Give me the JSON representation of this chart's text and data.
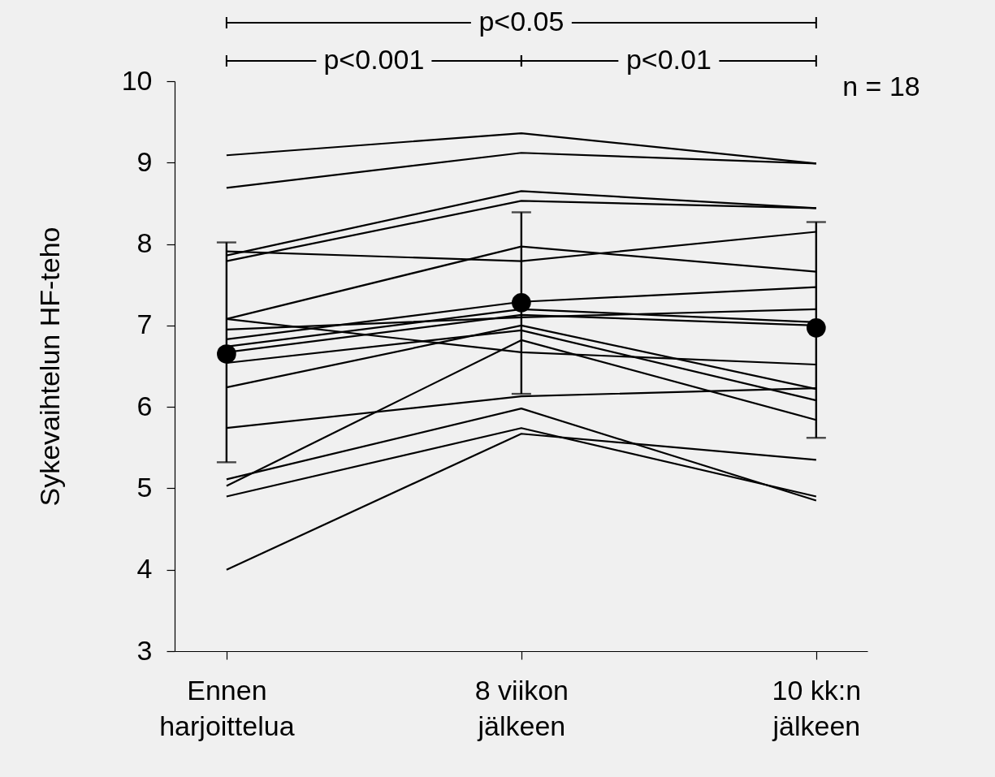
{
  "chart_data": {
    "type": "line",
    "ylabel": "Sykevaihtelun HF-teho",
    "categories": [
      "Ennen\nharjoittelua",
      "8 viikon\njälkeen",
      "10 kk:n\njälkeen"
    ],
    "ylim": [
      3,
      10
    ],
    "yticks": [
      3,
      4,
      5,
      6,
      7,
      8,
      9,
      10
    ],
    "grid": false,
    "line_style": "solid",
    "annotations": [
      "p<0.05",
      "p<0.001",
      "p<0.01",
      "n = 18"
    ],
    "series": [
      {
        "type": "scatter",
        "marker": "circle",
        "color": "#000000",
        "values": [
          6.65,
          7.28,
          6.97
        ],
        "errors": [
          [
            5.32,
            8.02
          ],
          [
            6.16,
            8.39
          ],
          [
            5.62,
            8.27
          ]
        ]
      },
      {
        "color": "#000000",
        "values": [
          9.09,
          9.36,
          8.99
        ]
      },
      {
        "color": "#000000",
        "values": [
          8.69,
          9.12,
          8.99
        ]
      },
      {
        "color": "#000000",
        "values": [
          7.86,
          8.65,
          8.44
        ]
      },
      {
        "color": "#000000",
        "values": [
          7.79,
          8.53,
          8.44
        ]
      },
      {
        "color": "#000000",
        "values": [
          7.91,
          7.79,
          8.15
        ]
      },
      {
        "color": "#000000",
        "values": [
          7.08,
          7.97,
          7.66
        ]
      },
      {
        "color": "#000000",
        "values": [
          7.08,
          6.67,
          6.52
        ]
      },
      {
        "color": "#000000",
        "values": [
          6.95,
          7.1,
          7.2
        ]
      },
      {
        "color": "#000000",
        "values": [
          6.83,
          7.29,
          7.47
        ]
      },
      {
        "color": "#000000",
        "values": [
          6.74,
          7.2,
          7.04
        ]
      },
      {
        "color": "#000000",
        "values": [
          6.67,
          7.13,
          7.0
        ]
      },
      {
        "color": "#000000",
        "values": [
          6.54,
          6.94,
          6.08
        ]
      },
      {
        "color": "#000000",
        "values": [
          6.24,
          7.0,
          6.22
        ]
      },
      {
        "color": "#000000",
        "values": [
          5.74,
          6.13,
          6.23
        ]
      },
      {
        "color": "#000000",
        "values": [
          5.11,
          5.98,
          4.85
        ]
      },
      {
        "color": "#000000",
        "values": [
          5.03,
          6.82,
          5.84
        ]
      },
      {
        "color": "#000000",
        "values": [
          4.9,
          5.74,
          4.9
        ]
      },
      {
        "color": "#000000",
        "values": [
          4.0,
          5.67,
          5.35
        ]
      }
    ]
  }
}
